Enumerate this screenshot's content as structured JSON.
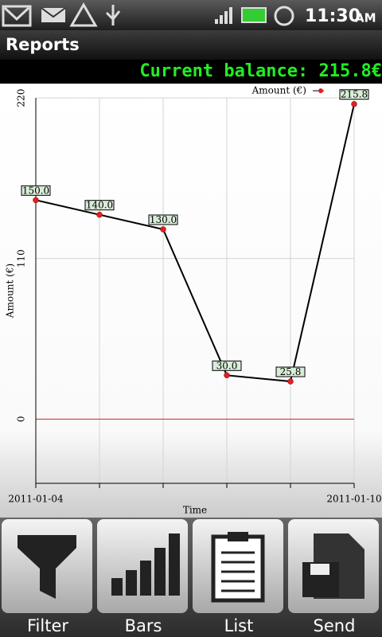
{
  "status_bar": {
    "time": "11:30",
    "ampm": "AM"
  },
  "header": {
    "title": "Reports"
  },
  "balance": "Current balance: 215.8€",
  "chart_data": {
    "type": "line",
    "x_label": "Time",
    "y_label": "Amount (€)",
    "categories": [
      "2011-01-04",
      null,
      null,
      null,
      null,
      "2011-01-10"
    ],
    "series": [
      {
        "name": "Amount (€)",
        "color": "#000000",
        "marker_color": "#e02020",
        "values": [
          150,
          140,
          130,
          30,
          25.8,
          215.8
        ],
        "value_labels": [
          "150.0",
          "140.0",
          "130.0",
          "30.0",
          "25.8",
          "215.8"
        ]
      }
    ],
    "ylim": [
      -44,
      220
    ],
    "yticks": [
      0,
      110,
      220
    ],
    "grid": true,
    "legend": "top-right"
  },
  "buttons": [
    "Filter",
    "Bars",
    "List",
    "Send"
  ]
}
